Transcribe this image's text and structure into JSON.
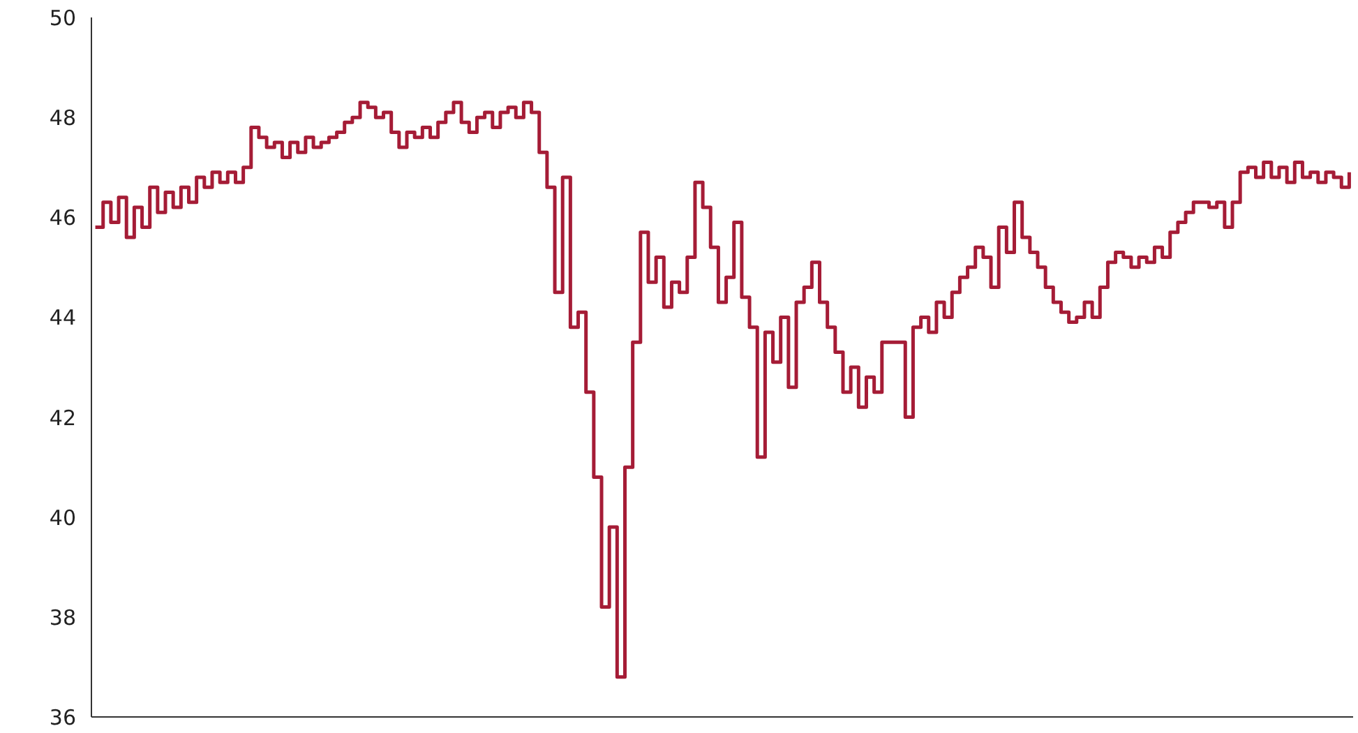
{
  "chart_data": {
    "type": "step",
    "ylim": [
      36,
      50
    ],
    "yticks": [
      36,
      38,
      40,
      42,
      44,
      46,
      48,
      50
    ],
    "grid": false,
    "tick_labels": "y",
    "categories": [
      null,
      null,
      null,
      null,
      null,
      null,
      null,
      null,
      null,
      null,
      null,
      null,
      null,
      null,
      null,
      null,
      null,
      null,
      null,
      null,
      null,
      null,
      null,
      null,
      null,
      null,
      null,
      null,
      null,
      null,
      null,
      null,
      null,
      null,
      null,
      null,
      null,
      null,
      null,
      null,
      null,
      null,
      null,
      null,
      null,
      null,
      null,
      null,
      null,
      null,
      null,
      null,
      null,
      null,
      null,
      null,
      null,
      null,
      null,
      null,
      null,
      null,
      null,
      null,
      null,
      null,
      null,
      null,
      null,
      null,
      null,
      null,
      null,
      null,
      null,
      null,
      null,
      null,
      null,
      null,
      null,
      null,
      null,
      null,
      null,
      null,
      null,
      null,
      null,
      null,
      null,
      null,
      null,
      null,
      null,
      null,
      null,
      null,
      null,
      null,
      null,
      null,
      null,
      null,
      null,
      null,
      null,
      null,
      null,
      null,
      null,
      null,
      null,
      null,
      null,
      null,
      null,
      null,
      null,
      null,
      null,
      null,
      null,
      null,
      null,
      null,
      null,
      null,
      null,
      null,
      null,
      null,
      null,
      null,
      null,
      null,
      null,
      null,
      null,
      null,
      null,
      null,
      null,
      null,
      null,
      null,
      null,
      null,
      null,
      null,
      null,
      null,
      null,
      null,
      null,
      null,
      null,
      null,
      null,
      null,
      null,
      null
    ],
    "series": [
      {
        "color": "#a51c36",
        "values": [
          45.8,
          46.3,
          45.9,
          46.4,
          45.6,
          46.2,
          45.8,
          46.6,
          46.1,
          46.5,
          46.2,
          46.6,
          46.3,
          46.8,
          46.6,
          46.9,
          46.7,
          46.9,
          46.7,
          47.0,
          47.8,
          47.6,
          47.4,
          47.5,
          47.2,
          47.5,
          47.3,
          47.6,
          47.4,
          47.5,
          47.6,
          47.7,
          47.9,
          48.0,
          48.3,
          48.2,
          48.0,
          48.1,
          47.7,
          47.4,
          47.7,
          47.6,
          47.8,
          47.6,
          47.9,
          48.1,
          48.3,
          47.9,
          47.7,
          48.0,
          48.1,
          47.8,
          48.1,
          48.2,
          48.0,
          48.3,
          48.1,
          47.3,
          46.6,
          44.5,
          46.8,
          43.8,
          44.1,
          42.5,
          40.8,
          38.2,
          39.8,
          36.8,
          41.0,
          43.5,
          45.7,
          44.7,
          45.2,
          44.2,
          44.7,
          44.5,
          45.2,
          46.7,
          46.2,
          45.4,
          44.3,
          44.8,
          45.9,
          44.4,
          43.8,
          41.2,
          43.7,
          43.1,
          44.0,
          42.6,
          44.3,
          44.6,
          45.1,
          44.3,
          43.8,
          43.3,
          42.5,
          43.0,
          42.2,
          42.8,
          42.5,
          43.5,
          43.5,
          43.5,
          42.0,
          43.8,
          44.0,
          43.7,
          44.3,
          44.0,
          44.5,
          44.8,
          45.0,
          45.4,
          45.2,
          44.6,
          45.8,
          45.3,
          46.3,
          45.6,
          45.3,
          45.0,
          44.6,
          44.3,
          44.1,
          43.9,
          44.0,
          44.3,
          44.0,
          44.6,
          45.1,
          45.3,
          45.2,
          45.0,
          45.2,
          45.1,
          45.4,
          45.2,
          45.7,
          45.9,
          46.1,
          46.3,
          46.3,
          46.2,
          46.3,
          45.8,
          46.3,
          46.9,
          47.0,
          46.8,
          47.1,
          46.8,
          47.0,
          46.7,
          47.1,
          46.8,
          46.9,
          46.7,
          46.9,
          46.8,
          46.6,
          46.9
        ]
      }
    ]
  }
}
